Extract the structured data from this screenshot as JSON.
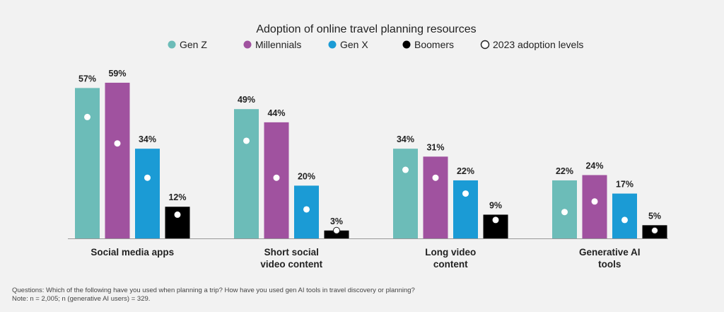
{
  "chart_data": {
    "type": "bar",
    "title": "Adoption of online travel planning resources",
    "categories": [
      [
        "Social media apps"
      ],
      [
        "Short social",
        "video content"
      ],
      [
        "Long video",
        "content"
      ],
      [
        "Generative AI",
        "tools"
      ]
    ],
    "series": [
      {
        "name": "Gen Z",
        "color": "#6cbcb8",
        "values": [
          57,
          49,
          34,
          22
        ],
        "adoption_2023": [
          46,
          37,
          26,
          10
        ]
      },
      {
        "name": "Millennials",
        "color": "#a0529f",
        "values": [
          59,
          44,
          31,
          24
        ],
        "adoption_2023": [
          36,
          23,
          23,
          14
        ]
      },
      {
        "name": "Gen X",
        "color": "#1b9bd5",
        "values": [
          34,
          20,
          22,
          17
        ],
        "adoption_2023": [
          23,
          11,
          17,
          7
        ]
      },
      {
        "name": "Boomers",
        "color": "#000000",
        "values": [
          12,
          3,
          9,
          5
        ],
        "adoption_2023": [
          9,
          3,
          7,
          3
        ]
      }
    ],
    "marker_legend": "2023 adoption levels",
    "value_suffix": "%",
    "ylim": [
      0,
      65
    ],
    "grid": false,
    "legend_position": "top-center"
  },
  "footer": {
    "questions": "Questions: Which of the following have you used when planning a trip? How have you used gen AI tools in travel discovery or planning?",
    "note": "Note: n = 2,005; n (generative AI users) = 329."
  }
}
